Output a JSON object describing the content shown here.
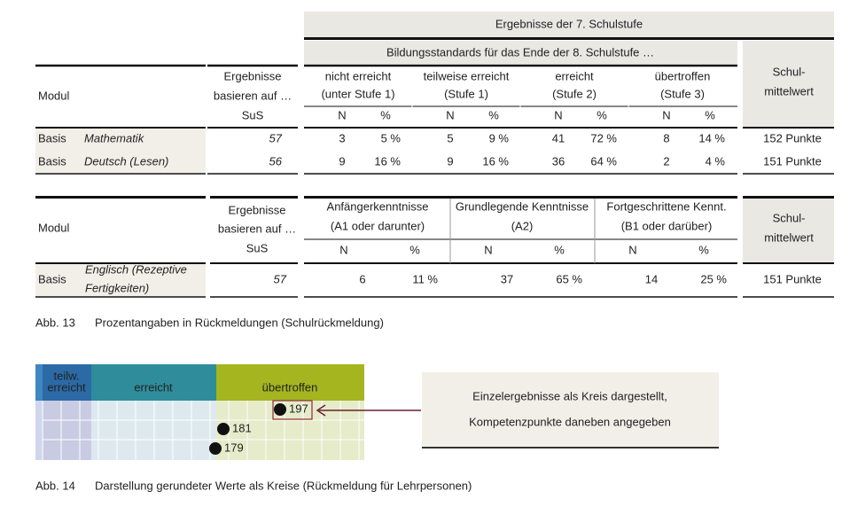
{
  "table1": {
    "title": "Ergebnisse der 7. Schulstufe",
    "subtitle": "Bildungsstandards für das Ende der 8. Schulstufe …",
    "header": {
      "modul": "Modul",
      "basis": [
        "Ergebnisse",
        "basieren auf …",
        "SuS"
      ],
      "levels": [
        [
          "nicht erreicht",
          "(unter Stufe 1)"
        ],
        [
          "teilweise erreicht",
          "(Stufe 1)"
        ],
        [
          "erreicht",
          "(Stufe 2)"
        ],
        [
          "übertroffen",
          "(Stufe 3)"
        ]
      ],
      "mean": [
        "Schul-",
        "mittelwert"
      ],
      "n": "N",
      "pct": "%"
    },
    "rows": [
      [
        "Basis",
        "Mathematik",
        "57",
        "3",
        "5 %",
        "5",
        "9 %",
        "41",
        "72 %",
        "8",
        "14 %",
        "152 Punkte"
      ],
      [
        "Basis",
        "Deutsch (Lesen)",
        "56",
        "9",
        "16 %",
        "9",
        "16 %",
        "36",
        "64 %",
        "2",
        "4 %",
        "151 Punkte"
      ]
    ]
  },
  "table2": {
    "header": {
      "modul": "Modul",
      "basis": [
        "Ergebnisse",
        "basieren auf …",
        "SuS"
      ],
      "levels": [
        [
          "Anfängerkenntnisse",
          "(A1 oder darunter)"
        ],
        [
          "Grundlegende Kenntnisse",
          "(A2)"
        ],
        [
          "Fortgeschrittene Kennt.",
          "(B1 oder darüber)"
        ]
      ],
      "mean": [
        "Schul-",
        "mittelwert"
      ],
      "n": "N",
      "pct": "%"
    },
    "rows": [
      [
        "Basis",
        [
          "Englisch (Rezeptive",
          "Fertigkeiten)"
        ],
        "57",
        "6",
        "11 %",
        "37",
        "65 %",
        "14",
        "25 %",
        "151 Punkte"
      ]
    ]
  },
  "caption1": {
    "label": "Abb. 13",
    "text": "Prozentangaben in Rückmeldungen (Schulrückmeldung)"
  },
  "figure": {
    "headers": [
      [
        "teilw.",
        "erreicht"
      ],
      "erreicht",
      "übertroffen"
    ],
    "points": [
      "197",
      "181",
      "179"
    ],
    "callout": [
      "Einzelergebnisse als Kreis dargestellt,",
      "Kompetenzpunkte daneben angegeben"
    ]
  },
  "caption2": {
    "label": "Abb. 14",
    "text": "Darstellung gerundeter Werte als Kreise (Rückmeldung für Lehrpersonen)"
  }
}
